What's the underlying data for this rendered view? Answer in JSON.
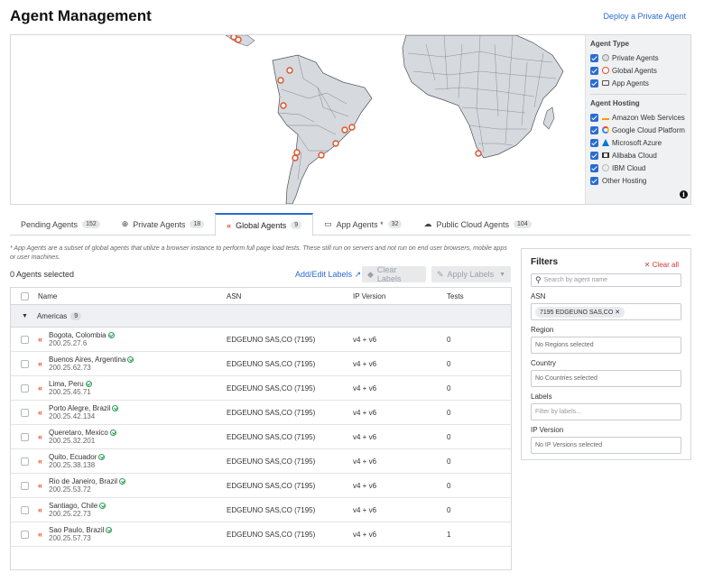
{
  "header": {
    "title": "Agent Management",
    "deploy_link": "Deploy a Private Agent"
  },
  "legend": {
    "agent_type_heading": "Agent Type",
    "agent_types": [
      "Private Agents",
      "Global Agents",
      "App Agents"
    ],
    "agent_hosting_heading": "Agent Hosting",
    "hosting": [
      "Amazon Web Services",
      "Google Cloud Platform",
      "Microsoft Azure",
      "Alibaba Cloud",
      "IBM Cloud",
      "Other Hosting"
    ]
  },
  "tabs": [
    {
      "label": "Pending Agents",
      "count": "152"
    },
    {
      "label": "Private Agents",
      "count": "18"
    },
    {
      "label": "Global Agents",
      "count": "9"
    },
    {
      "label": "App Agents *",
      "count": "32"
    },
    {
      "label": "Public Cloud Agents",
      "count": "104"
    }
  ],
  "note": "* App Agents are a subset of global agents that utilize a browser instance to perform full page load tests. These still run on servers and not run on end user browsers, mobile apps or user machines.",
  "toolbar": {
    "selected": "0 Agents selected",
    "add_edit": "Add/Edit Labels",
    "clear": "Clear Labels",
    "apply": "Apply Labels"
  },
  "table": {
    "columns": [
      "Name",
      "ASN",
      "IP Version",
      "Tests"
    ],
    "group": {
      "name": "Americas",
      "count": "9"
    },
    "rows": [
      {
        "name": "Bogota, Colombia",
        "ip": "200.25.27.6",
        "asn": "EDGEUNO SAS,CO (7195)",
        "ipv": "v4 + v6",
        "tests": "0"
      },
      {
        "name": "Buenos Aires, Argentina",
        "ip": "200.25.62.73",
        "asn": "EDGEUNO SAS,CO (7195)",
        "ipv": "v4 + v6",
        "tests": "0"
      },
      {
        "name": "Lima, Peru",
        "ip": "200.25.45.71",
        "asn": "EDGEUNO SAS,CO (7195)",
        "ipv": "v4 + v6",
        "tests": "0"
      },
      {
        "name": "Porto Alegre, Brazil",
        "ip": "200.25.42.134",
        "asn": "EDGEUNO SAS,CO (7195)",
        "ipv": "v4 + v6",
        "tests": "0"
      },
      {
        "name": "Queretaro, Mexico",
        "ip": "200.25.32.201",
        "asn": "EDGEUNO SAS,CO (7195)",
        "ipv": "v4 + v6",
        "tests": "0"
      },
      {
        "name": "Quito, Ecuador",
        "ip": "200.25.38.138",
        "asn": "EDGEUNO SAS,CO (7195)",
        "ipv": "v4 + v6",
        "tests": "0"
      },
      {
        "name": "Rio de Janeiro, Brazil",
        "ip": "200.25.53.72",
        "asn": "EDGEUNO SAS,CO (7195)",
        "ipv": "v4 + v6",
        "tests": "0"
      },
      {
        "name": "Santiago, Chile",
        "ip": "200.25.22.73",
        "asn": "EDGEUNO SAS,CO (7195)",
        "ipv": "v4 + v6",
        "tests": "0"
      },
      {
        "name": "Sao Paulo, Brazil",
        "ip": "200.25.57.73",
        "asn": "EDGEUNO SAS,CO (7195)",
        "ipv": "v4 + v6",
        "tests": "1"
      }
    ]
  },
  "filters": {
    "title": "Filters",
    "clear_all": "Clear all",
    "search_placeholder": "Search by agent name",
    "asn_label": "ASN",
    "asn_chip": "7195 EDGEUNO SAS,CO",
    "region_label": "Region",
    "region_value": "No Regions selected",
    "country_label": "Country",
    "country_value": "No Countries selected",
    "labels_label": "Labels",
    "labels_placeholder": "Filter by labels...",
    "ipver_label": "IP Version",
    "ipver_value": "No IP Versions selected"
  }
}
